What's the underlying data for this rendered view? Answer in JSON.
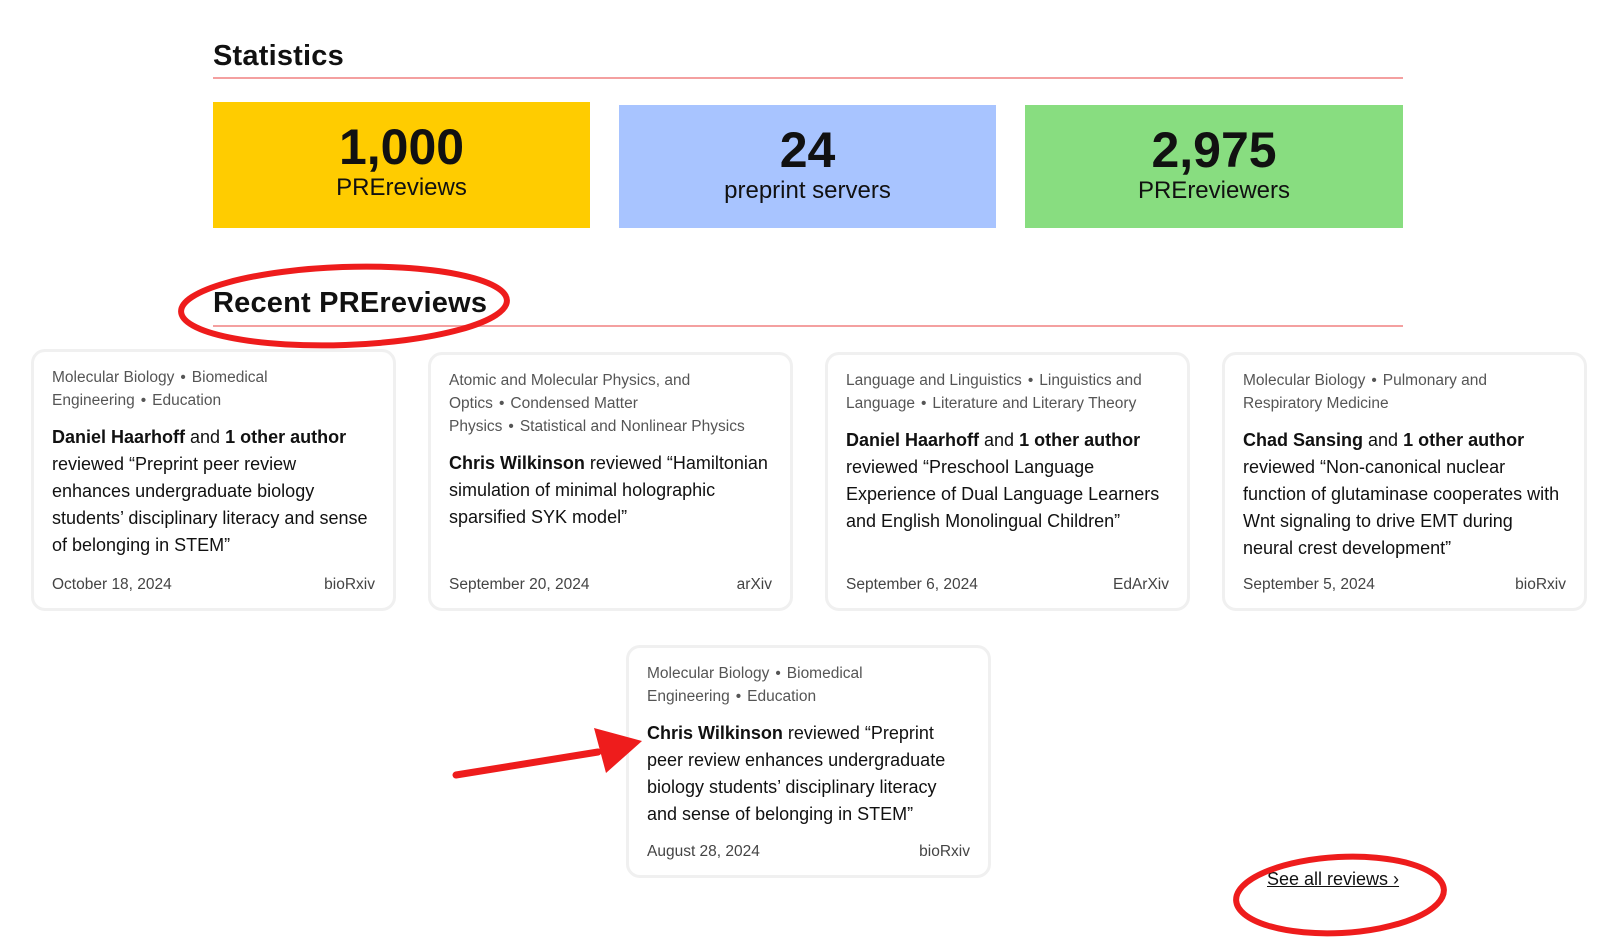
{
  "statistics": {
    "heading": "Statistics",
    "items": [
      {
        "number": "1,000",
        "label": "PREreviews",
        "color": "#ffcc00"
      },
      {
        "number": "24",
        "label": "preprint servers",
        "color": "#a8c4ff"
      },
      {
        "number": "2,975",
        "label": "PREreviewers",
        "color": "#88dd80"
      }
    ]
  },
  "recent": {
    "heading": "Recent PREreviews",
    "see_all": "See all reviews ›",
    "cards": [
      {
        "tags": [
          "Molecular Biology",
          "Biomedical Engineering",
          "Education"
        ],
        "author": "Daniel Haarhoff",
        "and": " and ",
        "other": "1 other author",
        "reviewed": " reviewed “Preprint peer review enhances undergraduate biology students’ disciplinary literacy and sense of belonging in STEM”",
        "date": "October 18, 2024",
        "server": "bioRxiv"
      },
      {
        "tags": [
          "Atomic and Molecular Physics, and Optics",
          "Condensed Matter Physics",
          "Statistical and Nonlinear Physics"
        ],
        "author": "Chris Wilkinson",
        "and": "",
        "other": "",
        "reviewed": " reviewed “Hamiltonian simulation of minimal holographic sparsified SYK model”",
        "date": "September 20, 2024",
        "server": "arXiv"
      },
      {
        "tags": [
          "Language and Linguistics",
          "Linguistics and Language",
          "Literature and Literary Theory"
        ],
        "author": "Daniel Haarhoff",
        "and": " and ",
        "other": "1 other author",
        "reviewed": " reviewed “Preschool Language Experience of Dual Language Learners and English Monolingual Children”",
        "date": "September 6, 2024",
        "server": "EdArXiv"
      },
      {
        "tags": [
          "Molecular Biology",
          "Pulmonary and Respiratory Medicine"
        ],
        "author": "Chad Sansing",
        "and": " and ",
        "other": "1 other author",
        "reviewed": " reviewed “Non-canonical nuclear function of glutaminase cooperates with Wnt signaling to drive EMT during neural crest development”",
        "date": "September 5, 2024",
        "server": "bioRxiv"
      },
      {
        "tags": [
          "Molecular Biology",
          "Biomedical Engineering",
          "Education"
        ],
        "author": "Chris Wilkinson",
        "and": "",
        "other": "",
        "reviewed": " reviewed “Preprint peer review enhances undergraduate biology students’ disciplinary literacy and sense of belonging in STEM”",
        "date": "August 28, 2024",
        "server": "bioRxiv"
      }
    ]
  },
  "annotation_color": "#ee1c1c"
}
